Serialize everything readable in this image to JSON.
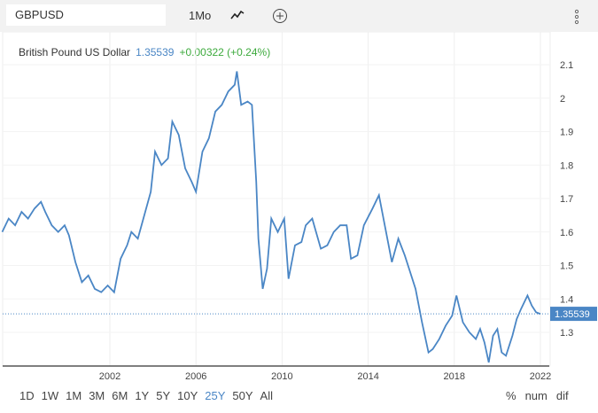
{
  "header": {
    "symbol": "GBPUSD",
    "period": "1Mo"
  },
  "legend": {
    "name": "British Pound US Dollar",
    "price": "1.35539",
    "change": "+0.00322 (+0.24%)"
  },
  "ranges": [
    "1D",
    "1W",
    "1M",
    "3M",
    "6M",
    "1Y",
    "5Y",
    "10Y",
    "25Y",
    "50Y",
    "All"
  ],
  "active_range": "25Y",
  "modes": [
    "%",
    "num",
    "dif"
  ],
  "colors": {
    "line": "#4a86c5",
    "up": "#3daa3d"
  },
  "chart_data": {
    "type": "line",
    "title": "British Pound US Dollar",
    "xlabel": "",
    "ylabel": "",
    "xlim": [
      1997,
      2022.3
    ],
    "ylim": [
      1.2,
      2.14
    ],
    "xticks": [
      2002,
      2006,
      2010,
      2014,
      2018,
      2022
    ],
    "yticks": [
      1.3,
      1.4,
      1.5,
      1.6,
      1.7,
      1.8,
      1.9,
      2,
      2.1
    ],
    "last_value": 1.35539,
    "series": [
      {
        "name": "GBPUSD",
        "x": [
          1997.0,
          1997.3,
          1997.6,
          1997.9,
          1998.2,
          1998.5,
          1998.8,
          1999.0,
          1999.3,
          1999.6,
          1999.9,
          2000.1,
          2000.4,
          2000.7,
          2001.0,
          2001.3,
          2001.6,
          2001.9,
          2002.2,
          2002.5,
          2002.8,
          2003.0,
          2003.3,
          2003.6,
          2003.9,
          2004.1,
          2004.4,
          2004.7,
          2004.9,
          2005.2,
          2005.5,
          2005.8,
          2006.0,
          2006.3,
          2006.6,
          2006.9,
          2007.2,
          2007.5,
          2007.8,
          2007.9,
          2008.1,
          2008.4,
          2008.6,
          2008.8,
          2008.9,
          2009.1,
          2009.3,
          2009.5,
          2009.8,
          2010.1,
          2010.3,
          2010.6,
          2010.9,
          2011.1,
          2011.4,
          2011.8,
          2012.1,
          2012.4,
          2012.7,
          2013.0,
          2013.2,
          2013.5,
          2013.8,
          2014.2,
          2014.5,
          2014.8,
          2015.1,
          2015.4,
          2015.7,
          2015.9,
          2016.2,
          2016.5,
          2016.8,
          2017.0,
          2017.3,
          2017.6,
          2017.9,
          2018.1,
          2018.4,
          2018.7,
          2019.0,
          2019.2,
          2019.4,
          2019.6,
          2019.8,
          2020.0,
          2020.2,
          2020.4,
          2020.7,
          2020.9,
          2021.1,
          2021.4,
          2021.6,
          2021.8,
          2022.0
        ],
        "y": [
          1.6,
          1.64,
          1.62,
          1.66,
          1.64,
          1.67,
          1.69,
          1.66,
          1.62,
          1.6,
          1.62,
          1.59,
          1.51,
          1.45,
          1.47,
          1.43,
          1.42,
          1.44,
          1.42,
          1.52,
          1.56,
          1.6,
          1.58,
          1.65,
          1.72,
          1.84,
          1.8,
          1.82,
          1.93,
          1.89,
          1.79,
          1.75,
          1.72,
          1.84,
          1.88,
          1.96,
          1.98,
          2.02,
          2.04,
          2.08,
          1.98,
          1.99,
          1.98,
          1.75,
          1.58,
          1.43,
          1.49,
          1.64,
          1.6,
          1.64,
          1.46,
          1.56,
          1.57,
          1.62,
          1.64,
          1.55,
          1.56,
          1.6,
          1.62,
          1.62,
          1.52,
          1.53,
          1.62,
          1.67,
          1.71,
          1.61,
          1.51,
          1.58,
          1.53,
          1.49,
          1.43,
          1.33,
          1.24,
          1.25,
          1.28,
          1.32,
          1.35,
          1.41,
          1.33,
          1.3,
          1.28,
          1.31,
          1.27,
          1.21,
          1.29,
          1.31,
          1.24,
          1.23,
          1.29,
          1.34,
          1.37,
          1.41,
          1.38,
          1.36,
          1.355
        ]
      }
    ]
  }
}
